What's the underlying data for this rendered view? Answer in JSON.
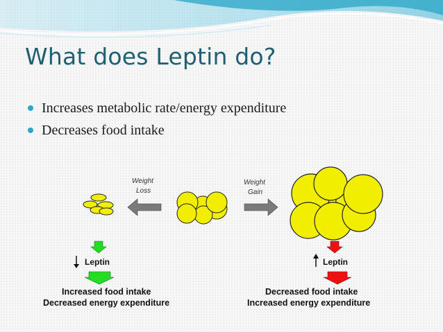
{
  "slide": {
    "title": "What does Leptin do?",
    "bullets": [
      "Increases metabolic rate/energy expenditure",
      "Decreases food intake"
    ]
  },
  "figure": {
    "weight_loss_label": [
      "Weight",
      "Loss"
    ],
    "weight_gain_label": [
      "Weight",
      "Gain"
    ],
    "left_leptin": "Leptin",
    "right_leptin": "Leptin",
    "left_effects": [
      "Increased food intake",
      "Decreased energy expenditure"
    ],
    "right_effects": [
      "Decreased food intake",
      "Increased energy expenditure"
    ]
  },
  "colors": {
    "title": "#1f5f72",
    "bullet": "#2aa6c6",
    "cell_fill": "#f2ee00",
    "loss_arrow": "#22dd22",
    "gain_arrow": "#ee1111",
    "grey_arrow": "#7a7a7a"
  }
}
